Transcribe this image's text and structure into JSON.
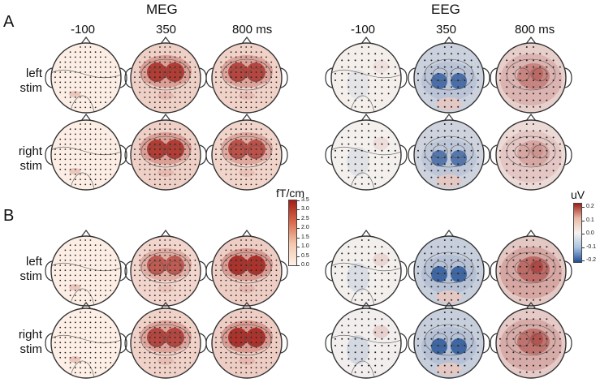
{
  "panels": {
    "a": "A",
    "b": "B"
  },
  "modalities": {
    "meg": "MEG",
    "eeg": "EEG"
  },
  "times": [
    "-100",
    "350",
    "800 ms"
  ],
  "eeg_times": [
    "-100",
    "350",
    "800 ms"
  ],
  "rows": [
    {
      "line1": "left",
      "line2": "stim"
    },
    {
      "line1": "right",
      "line2": "stim"
    },
    {
      "line1": "left",
      "line2": "stim"
    },
    {
      "line1": "right",
      "line2": "stim"
    }
  ],
  "meg_colorbar": {
    "unit": "fT/cm",
    "ticks": [
      "3.5",
      "3.0",
      "2.5",
      "2.0",
      "1.5",
      "1.0",
      "0.5",
      "0.0"
    ]
  },
  "eeg_colorbar": {
    "unit": "uV",
    "ticks": [
      "0.2",
      "0.1",
      "0.0",
      "-0.1",
      "-0.2"
    ]
  },
  "colors": {
    "meg_low": "#fdf0e6",
    "meg_high": "#a31d16",
    "eeg_neg": "#1f4e96",
    "eeg_zero": "#f6f2ef",
    "eeg_pos": "#9b1f1a",
    "sensor": "#222222",
    "outline": "#333333"
  },
  "maps": [
    {
      "group": "A",
      "modality": "MEG",
      "row": 0,
      "time": 0,
      "level": 0.06
    },
    {
      "group": "A",
      "modality": "MEG",
      "row": 0,
      "time": 1,
      "level": 0.85
    },
    {
      "group": "A",
      "modality": "MEG",
      "row": 0,
      "time": 2,
      "level": 0.8
    },
    {
      "group": "A",
      "modality": "EEG",
      "row": 0,
      "time": 0,
      "level": 0.05
    },
    {
      "group": "A",
      "modality": "EEG",
      "row": 0,
      "time": 1,
      "level": -0.8
    },
    {
      "group": "A",
      "modality": "EEG",
      "row": 0,
      "time": 2,
      "level": 0.65
    },
    {
      "group": "A",
      "modality": "MEG",
      "row": 1,
      "time": 0,
      "level": 0.04
    },
    {
      "group": "A",
      "modality": "MEG",
      "row": 1,
      "time": 1,
      "level": 0.85
    },
    {
      "group": "A",
      "modality": "MEG",
      "row": 1,
      "time": 2,
      "level": 0.75
    },
    {
      "group": "A",
      "modality": "EEG",
      "row": 1,
      "time": 0,
      "level": -0.06
    },
    {
      "group": "A",
      "modality": "EEG",
      "row": 1,
      "time": 1,
      "level": -0.75
    },
    {
      "group": "A",
      "modality": "EEG",
      "row": 1,
      "time": 2,
      "level": 0.45
    },
    {
      "group": "B",
      "modality": "MEG",
      "row": 2,
      "time": 0,
      "level": 0.05
    },
    {
      "group": "B",
      "modality": "MEG",
      "row": 2,
      "time": 1,
      "level": 0.7
    },
    {
      "group": "B",
      "modality": "MEG",
      "row": 2,
      "time": 2,
      "level": 0.9
    },
    {
      "group": "B",
      "modality": "EEG",
      "row": 2,
      "time": 0,
      "level": -0.08
    },
    {
      "group": "B",
      "modality": "EEG",
      "row": 2,
      "time": 1,
      "level": -0.85
    },
    {
      "group": "B",
      "modality": "EEG",
      "row": 2,
      "time": 2,
      "level": 0.8
    },
    {
      "group": "B",
      "modality": "MEG",
      "row": 3,
      "time": 0,
      "level": 0.03
    },
    {
      "group": "B",
      "modality": "MEG",
      "row": 3,
      "time": 1,
      "level": 0.8
    },
    {
      "group": "B",
      "modality": "MEG",
      "row": 3,
      "time": 2,
      "level": 0.9
    },
    {
      "group": "B",
      "modality": "EEG",
      "row": 3,
      "time": 0,
      "level": -0.1
    },
    {
      "group": "B",
      "modality": "EEG",
      "row": 3,
      "time": 1,
      "level": -0.85
    },
    {
      "group": "B",
      "modality": "EEG",
      "row": 3,
      "time": 2,
      "level": 0.75
    }
  ]
}
